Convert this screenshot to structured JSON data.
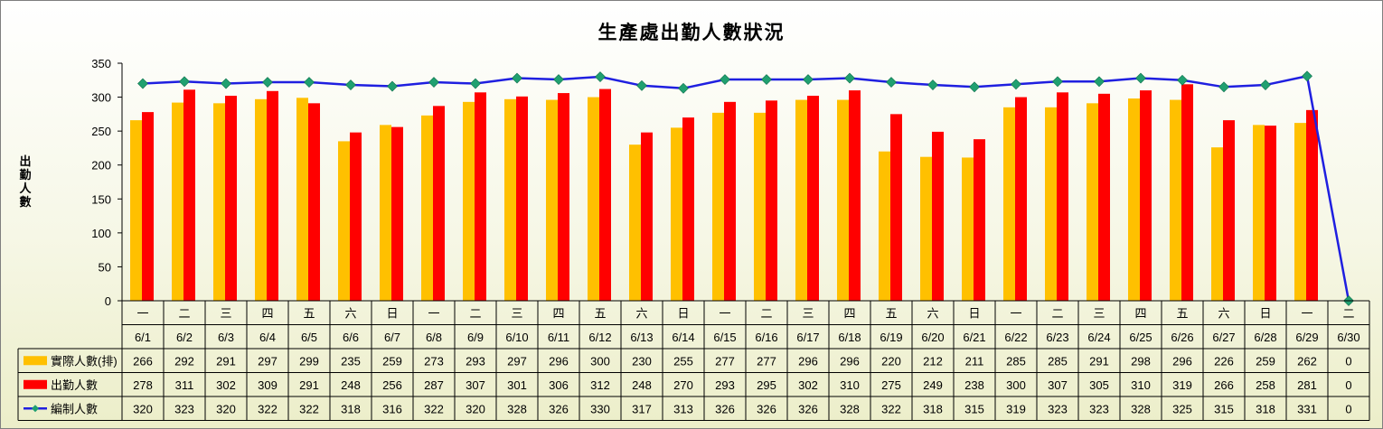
{
  "chart_data": {
    "type": "bar",
    "title": "生產處出勤人數狀況",
    "ylabel": "出勤人數",
    "ylim": [
      0,
      350
    ],
    "yticks": [
      0,
      50,
      100,
      150,
      200,
      250,
      300,
      350
    ],
    "weekdays": [
      "一",
      "二",
      "三",
      "四",
      "五",
      "六",
      "日",
      "一",
      "二",
      "三",
      "四",
      "五",
      "六",
      "日",
      "一",
      "二",
      "三",
      "四",
      "五",
      "六",
      "日",
      "一",
      "二",
      "三",
      "四",
      "五",
      "六",
      "日",
      "一",
      "二"
    ],
    "categories": [
      "6/1",
      "6/2",
      "6/3",
      "6/4",
      "6/5",
      "6/6",
      "6/7",
      "6/8",
      "6/9",
      "6/10",
      "6/11",
      "6/12",
      "6/13",
      "6/14",
      "6/15",
      "6/16",
      "6/17",
      "6/18",
      "6/19",
      "6/20",
      "6/21",
      "6/22",
      "6/23",
      "6/24",
      "6/25",
      "6/26",
      "6/27",
      "6/28",
      "6/29",
      "6/30"
    ],
    "series": [
      {
        "name": "實際人數(排)",
        "type": "bar",
        "color": "#ffc000",
        "values": [
          266,
          292,
          291,
          297,
          299,
          235,
          259,
          273,
          293,
          297,
          296,
          300,
          230,
          255,
          277,
          277,
          296,
          296,
          220,
          212,
          211,
          285,
          285,
          291,
          298,
          296,
          226,
          259,
          262,
          0
        ]
      },
      {
        "name": "出勤人數",
        "type": "bar",
        "color": "#ff0000",
        "values": [
          278,
          311,
          302,
          309,
          291,
          248,
          256,
          287,
          307,
          301,
          306,
          312,
          248,
          270,
          293,
          295,
          302,
          310,
          275,
          249,
          238,
          300,
          307,
          305,
          310,
          319,
          266,
          258,
          281,
          0
        ]
      },
      {
        "name": "編制人數",
        "type": "line",
        "color": "#1f1fe0",
        "marker_color": "#20a070",
        "values": [
          320,
          323,
          320,
          322,
          322,
          318,
          316,
          322,
          320,
          328,
          326,
          330,
          317,
          313,
          326,
          326,
          326,
          328,
          322,
          318,
          315,
          319,
          323,
          323,
          328,
          325,
          315,
          318,
          331,
          0
        ]
      }
    ],
    "grid": false,
    "legend": "data-table"
  }
}
